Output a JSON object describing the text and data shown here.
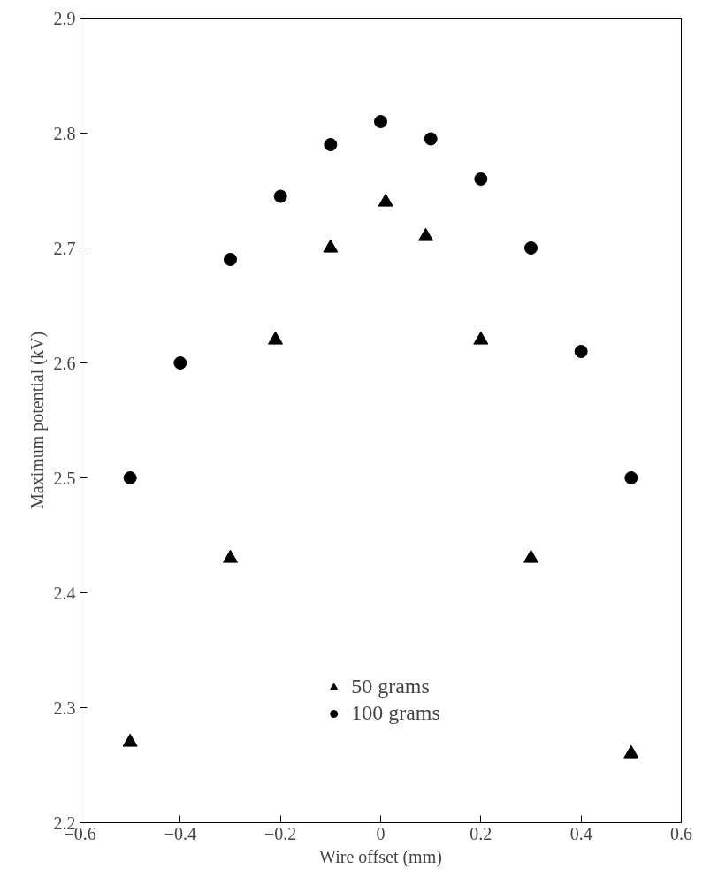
{
  "chart_data": {
    "type": "scatter",
    "xlabel": "Wire offset (mm)",
    "ylabel": "Maximum potential (kV)",
    "xlim": [
      -0.6,
      0.6
    ],
    "xticks": [
      -0.6,
      -0.4,
      -0.2,
      0,
      0.2,
      0.4,
      0.6
    ],
    "ylim": [
      2.2,
      2.9
    ],
    "yticks": [
      2.2,
      2.3,
      2.4,
      2.5,
      2.6,
      2.7,
      2.8,
      2.9
    ],
    "grid": false,
    "legend": "bottom",
    "series": [
      {
        "name": "50 grams",
        "color": "#000000",
        "marker": "triangle",
        "x": [
          -0.5,
          -0.3,
          -0.21,
          -0.1,
          0.01,
          0.09,
          0.2,
          0.3,
          0.5
        ],
        "values": [
          2.27,
          2.43,
          2.62,
          2.7,
          2.74,
          2.71,
          2.62,
          2.43,
          2.26
        ]
      },
      {
        "name": "100 grams",
        "color": "#000000",
        "marker": "circle",
        "x": [
          -0.5,
          -0.4,
          -0.3,
          -0.2,
          -0.1,
          0,
          0.1,
          0.2,
          0.3,
          0.4,
          0.5
        ],
        "values": [
          2.5,
          2.6,
          2.69,
          2.745,
          2.79,
          2.81,
          2.795,
          2.76,
          2.7,
          2.61,
          2.5
        ]
      }
    ]
  }
}
